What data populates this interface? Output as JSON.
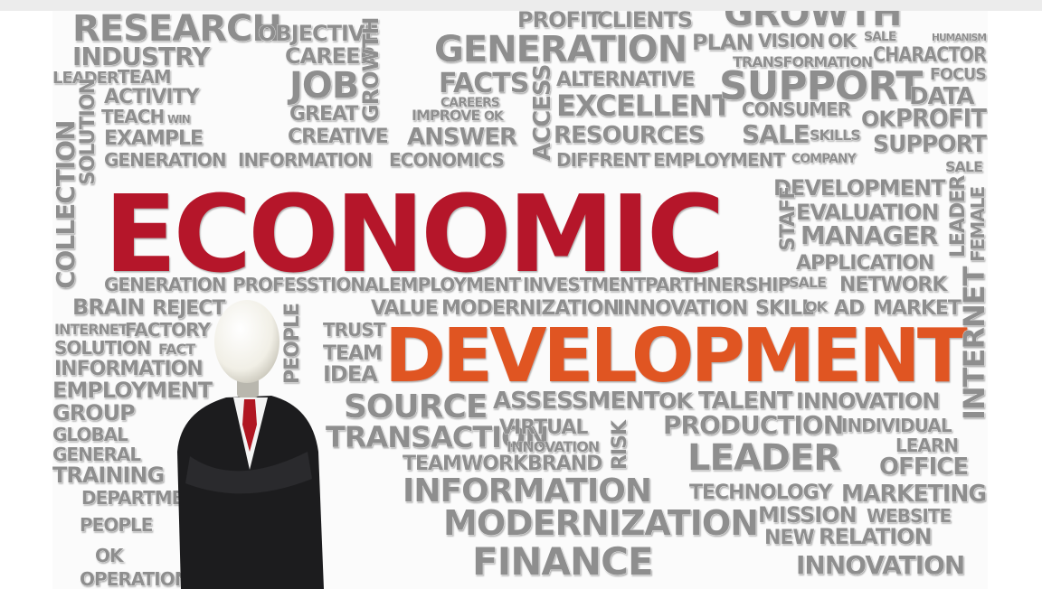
{
  "words": [
    "RESEARCH",
    "INDUSTRY",
    "LEADER",
    "TEAM",
    "ACTIVITY",
    "TEACH",
    "WIN",
    "EXAMPLE",
    "GENERATION",
    "INFORMATION",
    "ECONOMICS",
    "OBJECTIVE",
    "CAREER",
    "JOB",
    "GREAT",
    "CREATIVE",
    "PROFIT",
    "CLIENTS",
    "GENERATION",
    "FACTS",
    "CAREERS",
    "IMPROVE",
    "OK",
    "ANSWER",
    "ALTERNATIVE",
    "EXCELLENT",
    "RESOURCES",
    "DIFFRENT",
    "EMPLOYMENT",
    "COMPANY",
    "GROWTH",
    "PLAN",
    "VISION",
    "OK",
    "SALE",
    "HUMANISM",
    "TRANSFORMATION",
    "CHARACTOR",
    "SUPPORT",
    "FOCUS",
    "DATA",
    "CONSUMER",
    "SALE",
    "SKILLS",
    "OK",
    "PROFIT",
    "SUPPORT",
    "SALE",
    "ECONOMIC",
    "DEVELOPMENT",
    "EVALUATION",
    "MANAGER",
    "APPLICATION",
    "GENERATION",
    "PROFESSTIONAL",
    "EMPLOYMENT",
    "INVESTMENT",
    "PARTHNERSHIP",
    "SALE",
    "NETWORK",
    "BRAIN",
    "REJECT",
    "VALUE",
    "MODERNIZATION",
    "INNOVATION",
    "SKILL",
    "OK",
    "AD",
    "MARKET",
    "DEVELOPMENT",
    "INTERNET",
    "FACTORY",
    "SOLUTION",
    "FACT",
    "INFORMATION",
    "TRUST",
    "TEAM",
    "IDEA",
    "EMPLOYMENT",
    "GROUP",
    "GLOBAL",
    "GENERAL",
    "TRAINING",
    "SOURCE",
    "ASSESSMENT",
    "OK",
    "TALENT",
    "INNOVATION",
    "TRANSACTION",
    "VIRTUAL",
    "INNOVATION",
    "PRODUCTION",
    "INDIVIDUAL",
    "LEADER",
    "LEARN",
    "OFFICE",
    "TEAMWORK",
    "BRAND",
    "INFORMATION",
    "TECHNOLOGY",
    "MARKETING",
    "DEPARTMENT",
    "PEOPLE",
    "MODERNIZATION",
    "MISSION",
    "WEBSITE",
    "NEW",
    "RELATION",
    "OK",
    "FINANCE",
    "INNOVATION",
    "OPERATION",
    "COLLECTION",
    "SOLUTION",
    "GROWTH",
    "INTERNET",
    "FEMALE",
    "LEADER",
    "STAFF",
    "ACCESS",
    "PEOPLE",
    "RISK"
  ]
}
